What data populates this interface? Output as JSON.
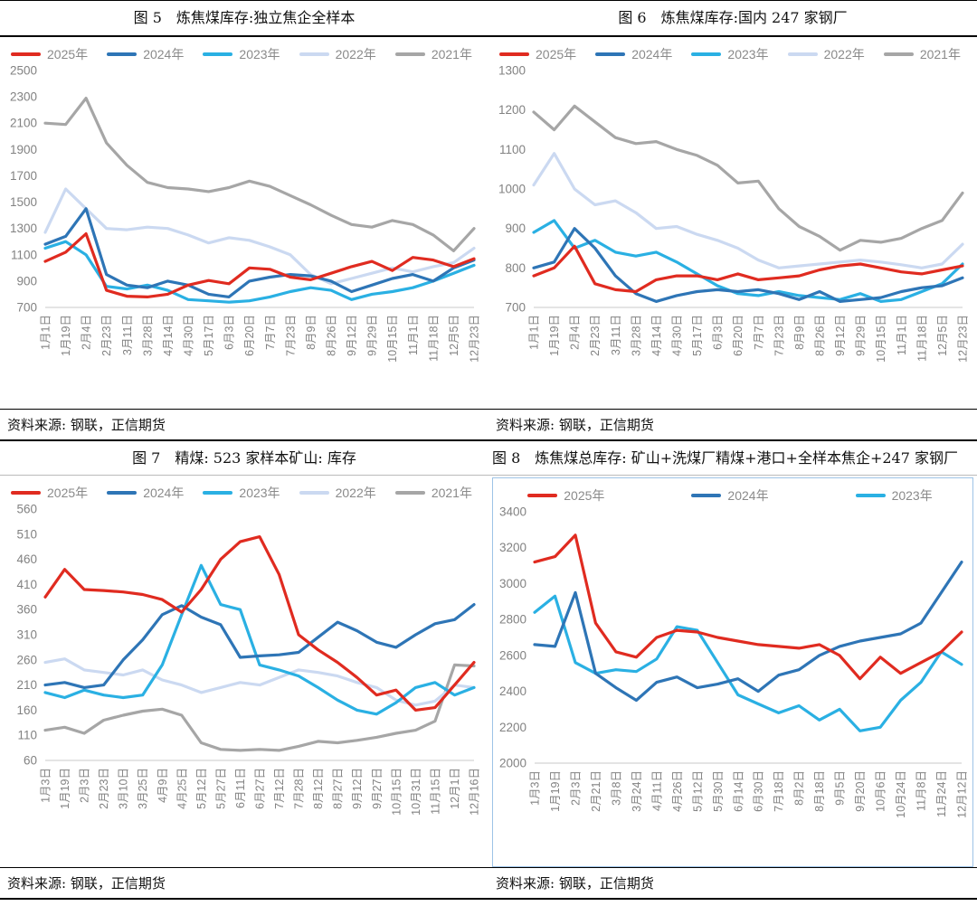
{
  "panels": [
    {
      "title": "图 5　炼焦煤库存:独立焦企全样本",
      "source": "资料来源: 钢联，正信期货"
    },
    {
      "title": "图 6　炼焦煤库存:国内 247 家钢厂",
      "source": "资料来源: 钢联，正信期货"
    },
    {
      "title": "图 7　精煤: 523 家样本矿山: 库存",
      "source": "资料来源: 钢联，正信期货"
    },
    {
      "title": "图 8　炼焦煤总库存: 矿山+洗煤厂精煤+港口+全样本焦企+247 家钢厂",
      "source": "资料来源: 钢联，正信期货"
    }
  ],
  "colors": {
    "red_2025": "#e02b20",
    "blue_2024": "#2e75b6",
    "cyan_2023": "#2ab0e3",
    "light_2022": "#cbd9f1",
    "gray_2021": "#a6a6a6",
    "axis_text": "#828282",
    "axis_line": "#c8c8c8",
    "chart_border": "#9dc3e6"
  },
  "chart_data": [
    {
      "type": "line",
      "title": "图 5 炼焦煤库存:独立焦企全样本",
      "xlabel": "",
      "ylabel": "",
      "ylim": [
        700,
        2500
      ],
      "ytick": 200,
      "grid": false,
      "legend_position": "top",
      "categories": [
        "1月1日",
        "1月19日",
        "2月4日",
        "2月23日",
        "3月11日",
        "3月28日",
        "4月14日",
        "4月30日",
        "5月17日",
        "6月3日",
        "6月20日",
        "7月7日",
        "7月23日",
        "8月9日",
        "8月26日",
        "9月12日",
        "9月29日",
        "10月15日",
        "11月1日",
        "11月18日",
        "12月5日",
        "12月23日"
      ],
      "series": [
        {
          "name": "2025年",
          "color": "#e02b20",
          "values": [
            1050,
            1120,
            1260,
            830,
            785,
            780,
            800,
            870,
            905,
            880,
            1000,
            990,
            930,
            910,
            960,
            1010,
            1050,
            980,
            1080,
            1060,
            1010,
            1070
          ]
        },
        {
          "name": "2024年",
          "color": "#2e75b6",
          "values": [
            1180,
            1240,
            1450,
            950,
            870,
            850,
            900,
            870,
            800,
            780,
            900,
            930,
            950,
            940,
            900,
            820,
            870,
            920,
            950,
            900,
            1000,
            1060
          ]
        },
        {
          "name": "2023年",
          "color": "#2ab0e3",
          "values": [
            1150,
            1200,
            1100,
            860,
            840,
            870,
            830,
            760,
            750,
            740,
            750,
            780,
            820,
            850,
            830,
            760,
            800,
            820,
            850,
            900,
            960,
            1020
          ]
        },
        {
          "name": "2022年",
          "color": "#cbd9f1",
          "values": [
            1270,
            1600,
            1450,
            1300,
            1290,
            1310,
            1300,
            1250,
            1190,
            1230,
            1210,
            1160,
            1100,
            950,
            880,
            920,
            960,
            1000,
            970,
            1010,
            1040,
            1150
          ]
        },
        {
          "name": "2021年",
          "color": "#a6a6a6",
          "values": [
            2100,
            2090,
            2290,
            1950,
            1780,
            1650,
            1610,
            1600,
            1580,
            1610,
            1660,
            1620,
            1550,
            1480,
            1400,
            1330,
            1310,
            1360,
            1330,
            1250,
            1130,
            1300
          ]
        }
      ]
    },
    {
      "type": "line",
      "title": "图 6 炼焦煤库存:国内 247 家钢厂",
      "xlabel": "",
      "ylabel": "",
      "ylim": [
        700,
        1300
      ],
      "ytick": 100,
      "grid": false,
      "legend_position": "top",
      "categories": [
        "1月1日",
        "1月19日",
        "2月4日",
        "2月23日",
        "3月11日",
        "3月28日",
        "4月14日",
        "4月30日",
        "5月17日",
        "6月3日",
        "6月20日",
        "7月7日",
        "7月23日",
        "8月9日",
        "8月26日",
        "9月12日",
        "9月29日",
        "10月15日",
        "11月1日",
        "11月18日",
        "12月5日",
        "12月23日"
      ],
      "series": [
        {
          "name": "2025年",
          "color": "#e02b20",
          "values": [
            780,
            800,
            855,
            760,
            745,
            740,
            770,
            780,
            780,
            770,
            785,
            770,
            775,
            780,
            795,
            805,
            810,
            800,
            790,
            785,
            795,
            805
          ]
        },
        {
          "name": "2024年",
          "color": "#2e75b6",
          "values": [
            800,
            815,
            900,
            850,
            780,
            735,
            715,
            730,
            740,
            745,
            740,
            745,
            735,
            720,
            740,
            715,
            720,
            725,
            740,
            750,
            755,
            775
          ]
        },
        {
          "name": "2023年",
          "color": "#2ab0e3",
          "values": [
            890,
            920,
            850,
            870,
            840,
            830,
            840,
            815,
            785,
            755,
            735,
            730,
            740,
            730,
            725,
            720,
            735,
            715,
            720,
            740,
            760,
            810
          ]
        },
        {
          "name": "2022年",
          "color": "#cbd9f1",
          "values": [
            1010,
            1090,
            1000,
            960,
            970,
            940,
            900,
            905,
            885,
            870,
            850,
            820,
            800,
            805,
            810,
            815,
            820,
            815,
            808,
            800,
            810,
            860
          ]
        },
        {
          "name": "2021年",
          "color": "#a6a6a6",
          "values": [
            1195,
            1150,
            1210,
            1170,
            1130,
            1115,
            1120,
            1100,
            1085,
            1060,
            1015,
            1020,
            950,
            905,
            880,
            845,
            870,
            865,
            875,
            900,
            920,
            990
          ]
        }
      ]
    },
    {
      "type": "line",
      "title": "图 7 精煤: 523 家样本矿山: 库存",
      "xlabel": "",
      "ylabel": "",
      "ylim": [
        60,
        560
      ],
      "ytick": 50,
      "grid": false,
      "legend_position": "top",
      "categories": [
        "1月3日",
        "1月19日",
        "2月3日",
        "2月23日",
        "3月10日",
        "3月25日",
        "4月9日",
        "4月25日",
        "5月12日",
        "5月27日",
        "6月11日",
        "6月27日",
        "7月12日",
        "7月28日",
        "8月12日",
        "8月27日",
        "9月12日",
        "9月27日",
        "10月15日",
        "10月31日",
        "11月15日",
        "12月1日",
        "12月16日"
      ],
      "series": [
        {
          "name": "2025年",
          "color": "#e02b20",
          "values": [
            385,
            440,
            400,
            398,
            395,
            390,
            380,
            355,
            400,
            460,
            495,
            505,
            430,
            310,
            280,
            255,
            225,
            190,
            200,
            160,
            165,
            210,
            255
          ]
        },
        {
          "name": "2024年",
          "color": "#2e75b6",
          "values": [
            210,
            215,
            205,
            210,
            260,
            300,
            350,
            368,
            345,
            330,
            265,
            268,
            270,
            275,
            305,
            335,
            318,
            295,
            285,
            310,
            332,
            340,
            370
          ]
        },
        {
          "name": "2023年",
          "color": "#2ab0e3",
          "values": [
            195,
            185,
            200,
            190,
            185,
            190,
            250,
            350,
            448,
            370,
            360,
            250,
            240,
            228,
            205,
            180,
            160,
            152,
            175,
            205,
            215,
            190,
            205
          ]
        },
        {
          "name": "2022年",
          "color": "#cbd9f1",
          "values": [
            255,
            262,
            240,
            235,
            230,
            240,
            220,
            210,
            195,
            205,
            215,
            210,
            225,
            240,
            235,
            228,
            215,
            205,
            180,
            170,
            178,
            210,
            205
          ]
        },
        {
          "name": "2021年",
          "color": "#a6a6a6",
          "values": [
            120,
            126,
            114,
            140,
            150,
            158,
            162,
            150,
            95,
            82,
            80,
            82,
            80,
            88,
            98,
            95,
            100,
            106,
            114,
            120,
            138,
            250,
            248
          ]
        }
      ]
    },
    {
      "type": "line",
      "title": "图 8 炼焦煤总库存: 矿山+洗煤厂精煤+港口+全样本焦企+247 家钢厂",
      "xlabel": "",
      "ylabel": "",
      "ylim": [
        2000,
        3400
      ],
      "ytick": 200,
      "grid": false,
      "legend_position": "top-center",
      "categories": [
        "1月3日",
        "1月19日",
        "2月3日",
        "2月21日",
        "3月8日",
        "3月24日",
        "4月11日",
        "4月26日",
        "5月12日",
        "5月30日",
        "6月14日",
        "6月30日",
        "7月18日",
        "8月2日",
        "8月18日",
        "9月5日",
        "9月20日",
        "10月6日",
        "10月24日",
        "11月8日",
        "11月24日",
        "12月12日"
      ],
      "series": [
        {
          "name": "2025年",
          "color": "#e02b20",
          "values": [
            3120,
            3150,
            3270,
            2780,
            2620,
            2590,
            2700,
            2740,
            2730,
            2700,
            2680,
            2660,
            2650,
            2640,
            2660,
            2600,
            2470,
            2590,
            2500,
            2560,
            2620,
            2730
          ]
        },
        {
          "name": "2024年",
          "color": "#2e75b6",
          "values": [
            2660,
            2650,
            2950,
            2500,
            2420,
            2350,
            2450,
            2480,
            2420,
            2440,
            2470,
            2400,
            2490,
            2520,
            2600,
            2650,
            2680,
            2700,
            2720,
            2780,
            2950,
            3120
          ]
        },
        {
          "name": "2023年",
          "color": "#2ab0e3",
          "values": [
            2840,
            2930,
            2560,
            2500,
            2520,
            2510,
            2580,
            2760,
            2740,
            2560,
            2380,
            2330,
            2280,
            2320,
            2240,
            2300,
            2180,
            2200,
            2350,
            2450,
            2620,
            2550
          ]
        }
      ]
    }
  ]
}
